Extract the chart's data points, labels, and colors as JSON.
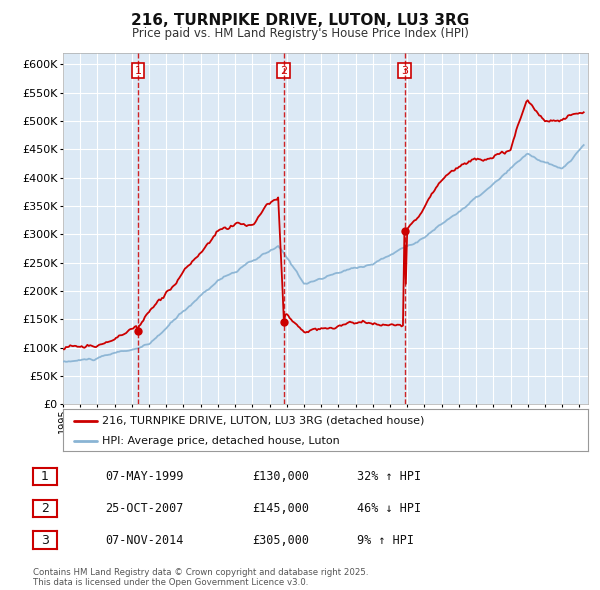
{
  "title": "216, TURNPIKE DRIVE, LUTON, LU3 3RG",
  "subtitle": "Price paid vs. HM Land Registry's House Price Index (HPI)",
  "bg_color": "#ffffff",
  "plot_bg_color": "#dce9f5",
  "grid_color": "#ffffff",
  "red_color": "#cc0000",
  "blue_color": "#8ab4d4",
  "ylim": [
    0,
    620000
  ],
  "yticks": [
    0,
    50000,
    100000,
    150000,
    200000,
    250000,
    300000,
    350000,
    400000,
    450000,
    500000,
    550000,
    600000
  ],
  "xlim": [
    1995,
    2025.5
  ],
  "sale_dates": [
    1999.35,
    2007.82,
    2014.85
  ],
  "sale_prices": [
    130000,
    145000,
    305000
  ],
  "sale_labels": [
    "1",
    "2",
    "3"
  ],
  "sale_date_strs": [
    "07-MAY-1999",
    "25-OCT-2007",
    "07-NOV-2014"
  ],
  "sale_price_strs": [
    "£130,000",
    "£145,000",
    "£305,000"
  ],
  "sale_hpi_strs": [
    "32% ↑ HPI",
    "46% ↓ HPI",
    "9% ↑ HPI"
  ],
  "legend_line1": "216, TURNPIKE DRIVE, LUTON, LU3 3RG (detached house)",
  "legend_line2": "HPI: Average price, detached house, Luton",
  "footer": "Contains HM Land Registry data © Crown copyright and database right 2025.\nThis data is licensed under the Open Government Licence v3.0."
}
